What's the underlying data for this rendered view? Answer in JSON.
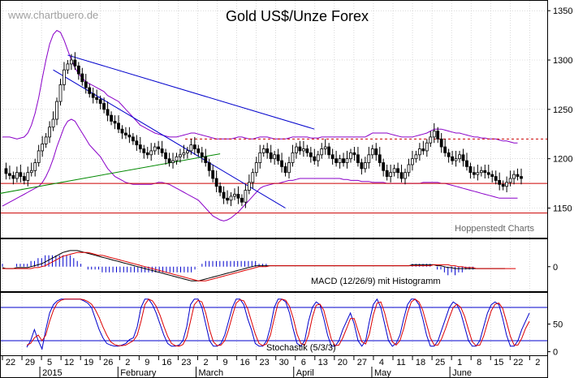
{
  "chart_data": {
    "type": "candlestick",
    "title": "Gold US$/Unze Forex",
    "watermark": "www.chartbuero.de",
    "credit": "Hoppenstedt Charts",
    "colors": {
      "candle": "#000000",
      "bollinger": "#8a00c8",
      "channel": "#0000cc",
      "trend_green": "#008800",
      "support": "#cc0000",
      "macd": "#000000",
      "signal": "#dd0000",
      "histogram": "#0000cc",
      "stoch_k": "#0000cc",
      "stoch_d": "#dd0000",
      "grid": "#c0c0c0"
    },
    "price_panel": {
      "ylim": [
        1120,
        1360
      ],
      "y_ticks": [
        "1350",
        "1300",
        "1250",
        "1200",
        "1150"
      ],
      "y_tick_values": [
        1350,
        1300,
        1250,
        1200,
        1150
      ],
      "support_lines": [
        1175,
        1145
      ],
      "resistance_dashed": 1220,
      "close_path": [
        1190,
        1185,
        1183,
        1180,
        1186,
        1182,
        1178,
        1186,
        1188,
        1196,
        1208,
        1215,
        1222,
        1232,
        1240,
        1258,
        1275,
        1290,
        1296,
        1300,
        1294,
        1286,
        1278,
        1272,
        1266,
        1262,
        1260,
        1256,
        1250,
        1244,
        1238,
        1236,
        1230,
        1226,
        1224,
        1222,
        1218,
        1214,
        1210,
        1206,
        1204,
        1208,
        1212,
        1210,
        1206,
        1200,
        1196,
        1198,
        1202,
        1204,
        1206,
        1208,
        1214,
        1210,
        1206,
        1202,
        1196,
        1188,
        1180,
        1172,
        1166,
        1160,
        1158,
        1162,
        1164,
        1160,
        1156,
        1168,
        1176,
        1186,
        1196,
        1206,
        1210,
        1206,
        1200,
        1204,
        1198,
        1192,
        1186,
        1196,
        1206,
        1212,
        1208,
        1210,
        1206,
        1202,
        1198,
        1204,
        1210,
        1212,
        1204,
        1200,
        1196,
        1200,
        1196,
        1200,
        1206,
        1204,
        1196,
        1190,
        1196,
        1204,
        1210,
        1204,
        1196,
        1188,
        1182,
        1186,
        1190,
        1186,
        1180,
        1186,
        1194,
        1200,
        1204,
        1210,
        1208,
        1216,
        1222,
        1228,
        1220,
        1212,
        1206,
        1202,
        1198,
        1200,
        1204,
        1198,
        1192,
        1186,
        1184,
        1186,
        1188,
        1186,
        1184,
        1182,
        1178,
        1174,
        1172,
        1176,
        1180,
        1184,
        1182,
        1180
      ],
      "bollinger_upper": [
        1222,
        1222,
        1222,
        1221,
        1220,
        1221,
        1222,
        1226,
        1234,
        1246,
        1262,
        1282,
        1300,
        1316,
        1326,
        1330,
        1328,
        1320,
        1310,
        1300,
        1292,
        1286,
        1282,
        1278,
        1276,
        1274,
        1272,
        1270,
        1268,
        1264,
        1262,
        1260,
        1258,
        1254,
        1250,
        1246,
        1242,
        1238,
        1234,
        1232,
        1230,
        1228,
        1226,
        1225,
        1224,
        1223,
        1222,
        1222,
        1222,
        1223,
        1224,
        1225,
        1226,
        1226,
        1225,
        1224,
        1223,
        1222,
        1221,
        1220,
        1220,
        1220,
        1220,
        1220,
        1221,
        1222,
        1222,
        1221,
        1220,
        1220,
        1221,
        1222,
        1222,
        1222,
        1221,
        1220,
        1220,
        1220,
        1220,
        1221,
        1222,
        1222,
        1222,
        1222,
        1222,
        1221,
        1221,
        1221,
        1222,
        1222,
        1222,
        1222,
        1222,
        1222,
        1222,
        1222,
        1222,
        1222,
        1222,
        1222,
        1222,
        1224,
        1226,
        1226,
        1226,
        1226,
        1226,
        1225,
        1224,
        1223,
        1222,
        1222,
        1222,
        1222,
        1223,
        1224,
        1225,
        1226,
        1228,
        1230,
        1230,
        1230,
        1229,
        1228,
        1227,
        1226,
        1226,
        1225,
        1224,
        1223,
        1222,
        1222,
        1221,
        1221,
        1220,
        1220,
        1220,
        1219,
        1218,
        1218,
        1217,
        1216,
        1216
      ],
      "bollinger_lower": [
        1152,
        1154,
        1156,
        1158,
        1160,
        1162,
        1164,
        1166,
        1168,
        1170,
        1172,
        1176,
        1182,
        1190,
        1200,
        1212,
        1222,
        1232,
        1238,
        1240,
        1238,
        1232,
        1226,
        1220,
        1214,
        1210,
        1206,
        1202,
        1196,
        1190,
        1186,
        1182,
        1180,
        1178,
        1176,
        1175,
        1174,
        1174,
        1174,
        1174,
        1174,
        1174,
        1175,
        1176,
        1176,
        1175,
        1174,
        1172,
        1170,
        1168,
        1166,
        1164,
        1162,
        1160,
        1158,
        1154,
        1150,
        1146,
        1142,
        1140,
        1138,
        1137,
        1138,
        1140,
        1143,
        1146,
        1150,
        1154,
        1158,
        1162,
        1166,
        1170,
        1172,
        1173,
        1174,
        1175,
        1175,
        1176,
        1177,
        1178,
        1178,
        1179,
        1180,
        1180,
        1180,
        1180,
        1180,
        1180,
        1180,
        1180,
        1180,
        1180,
        1180,
        1180,
        1179,
        1179,
        1178,
        1178,
        1178,
        1177,
        1177,
        1177,
        1176,
        1176,
        1176,
        1176,
        1175,
        1175,
        1175,
        1175,
        1175,
        1175,
        1175,
        1175,
        1175,
        1175,
        1176,
        1176,
        1176,
        1176,
        1176,
        1175,
        1175,
        1174,
        1173,
        1172,
        1171,
        1170,
        1169,
        1168,
        1167,
        1166,
        1165,
        1164,
        1163,
        1162,
        1161,
        1160,
        1160,
        1160,
        1160,
        1160,
        1160
      ],
      "channel_upper": [
        [
          18,
          1305
        ],
        [
          86,
          1230
        ]
      ],
      "channel_lower": [
        [
          14,
          1290
        ],
        [
          78,
          1150
        ]
      ],
      "green_trend": [
        [
          -8,
          1160
        ],
        [
          60,
          1205
        ]
      ]
    },
    "macd_panel": {
      "label": "MACD (12/26/9) mit Histogramm",
      "y_ticks": [
        "0"
      ],
      "ylim": [
        -25,
        28
      ],
      "macd": [
        -1,
        -2,
        -2,
        -2,
        -1,
        -1,
        -1,
        -1,
        0,
        1,
        2,
        3,
        5,
        7,
        9,
        11,
        13,
        15,
        16,
        17,
        17,
        17,
        16,
        15,
        14,
        13,
        12,
        11,
        10,
        9,
        8,
        7,
        6,
        5,
        4,
        3,
        2,
        1,
        0,
        -1,
        -2,
        -3,
        -4,
        -5,
        -6,
        -7,
        -8,
        -9,
        -10,
        -11,
        -12,
        -13,
        -14,
        -15,
        -15,
        -15,
        -14,
        -13,
        -12,
        -11,
        -10,
        -9,
        -8,
        -7,
        -6,
        -5,
        -4,
        -3,
        -2,
        -1,
        0,
        1,
        1,
        1,
        1,
        1,
        1,
        1,
        1,
        1,
        1,
        1,
        1,
        1,
        1,
        1,
        1,
        1,
        1,
        1,
        1,
        1,
        1,
        1,
        1,
        1,
        1,
        1,
        1,
        1,
        1,
        1,
        1,
        1,
        1,
        1,
        1,
        1,
        1,
        1,
        1,
        1,
        1,
        1,
        1,
        2,
        2,
        2,
        2,
        2,
        2,
        2,
        1,
        1,
        0,
        -1,
        -1,
        -2,
        -2,
        -2,
        -2,
        -2,
        -2,
        -2,
        -2,
        -2,
        -2,
        -2,
        -2,
        -2,
        -2,
        -2
      ],
      "signal": [
        -2,
        -2,
        -2,
        -2,
        -2,
        -2,
        -2,
        -2,
        -2,
        -1,
        -1,
        0,
        1,
        3,
        5,
        7,
        9,
        11,
        12,
        13,
        14,
        15,
        15,
        15,
        15,
        14,
        13,
        12,
        12,
        11,
        10,
        9,
        8,
        7,
        6,
        5,
        4,
        3,
        2,
        1,
        0,
        -1,
        -2,
        -3,
        -4,
        -5,
        -6,
        -7,
        -8,
        -9,
        -10,
        -11,
        -12,
        -13,
        -14,
        -15,
        -15,
        -15,
        -14,
        -13,
        -12,
        -11,
        -10,
        -9,
        -8,
        -7,
        -6,
        -5,
        -4,
        -3,
        -2,
        -1,
        0,
        0,
        0,
        1,
        1,
        1,
        1,
        1,
        1,
        1,
        1,
        1,
        1,
        1,
        1,
        1,
        1,
        1,
        1,
        1,
        1,
        1,
        1,
        1,
        1,
        1,
        1,
        1,
        1,
        1,
        1,
        1,
        1,
        1,
        1,
        1,
        1,
        1,
        1,
        1,
        1,
        1,
        1,
        1,
        1,
        1,
        1,
        1,
        1,
        2,
        2,
        2,
        2,
        2,
        1,
        1,
        0,
        0,
        -1,
        -1,
        -1,
        -2,
        -2,
        -2,
        -2,
        -2,
        -2,
        -2,
        -2,
        -2,
        -2,
        -2,
        -2
      ]
    },
    "stoch_panel": {
      "label": "Stochastik (5/3/3)",
      "y_ticks": [
        "50",
        "0"
      ],
      "y_tick_values": [
        50,
        0
      ],
      "ylim": [
        -5,
        105
      ],
      "bands": [
        80,
        20
      ],
      "k": [
        8,
        20,
        40,
        20,
        5,
        40,
        70,
        85,
        92,
        95,
        95,
        95,
        95,
        95,
        95,
        92,
        88,
        80,
        60,
        40,
        25,
        15,
        12,
        10,
        10,
        12,
        15,
        22,
        25,
        45,
        80,
        95,
        95,
        85,
        70,
        50,
        30,
        15,
        10,
        10,
        12,
        20,
        45,
        85,
        95,
        95,
        80,
        50,
        20,
        10,
        10,
        15,
        30,
        55,
        80,
        95,
        95,
        85,
        60,
        40,
        15,
        10,
        10,
        20,
        45,
        80,
        95,
        95,
        90,
        70,
        40,
        15,
        10,
        20,
        55,
        80,
        90,
        85,
        60,
        30,
        10,
        10,
        20,
        40,
        55,
        70,
        50,
        20,
        10,
        20,
        55,
        85,
        95,
        80,
        50,
        20,
        10,
        15,
        30,
        60,
        85,
        95,
        95,
        85,
        60,
        30,
        10,
        10,
        20,
        40,
        60,
        80,
        90,
        85,
        70,
        45,
        20,
        10,
        10,
        20,
        45,
        70,
        85,
        90,
        85,
        60,
        30,
        10,
        10,
        20,
        40,
        55,
        70
      ],
      "d": [
        12,
        15,
        25,
        30,
        20,
        30,
        55,
        75,
        88,
        93,
        95,
        95,
        95,
        95,
        95,
        94,
        91,
        86,
        76,
        62,
        45,
        30,
        18,
        13,
        11,
        11,
        12,
        16,
        20,
        30,
        55,
        85,
        95,
        92,
        82,
        66,
        46,
        28,
        15,
        11,
        10,
        13,
        26,
        55,
        85,
        93,
        90,
        70,
        40,
        18,
        11,
        12,
        20,
        40,
        65,
        88,
        94,
        92,
        78,
        55,
        32,
        15,
        11,
        14,
        30,
        60,
        88,
        95,
        93,
        82,
        60,
        32,
        15,
        12,
        30,
        62,
        84,
        86,
        75,
        48,
        22,
        11,
        12,
        25,
        42,
        60,
        60,
        38,
        18,
        14,
        32,
        66,
        88,
        90,
        70,
        42,
        18,
        12,
        20,
        42,
        70,
        90,
        95,
        90,
        75,
        50,
        25,
        12,
        12,
        24,
        42,
        62,
        80,
        86,
        80,
        64,
        40,
        18,
        11,
        12,
        28,
        52,
        74,
        86,
        88,
        78,
        54,
        28,
        12,
        12,
        24,
        42,
        55
      ],
      "x_offset_weeks": 3.5
    },
    "x_axis": {
      "tick_labels": [
        "22",
        "29",
        "5",
        "12",
        "19",
        "26",
        "2",
        "9",
        "16",
        "23",
        "2",
        "9",
        "16",
        "23",
        "30",
        "6",
        "13",
        "20",
        "27",
        "4",
        "11",
        "18",
        "25",
        "1",
        "8",
        "15",
        "22",
        "2"
      ],
      "months": [
        "2015",
        "February",
        "March",
        "April",
        "May",
        "June"
      ]
    }
  }
}
